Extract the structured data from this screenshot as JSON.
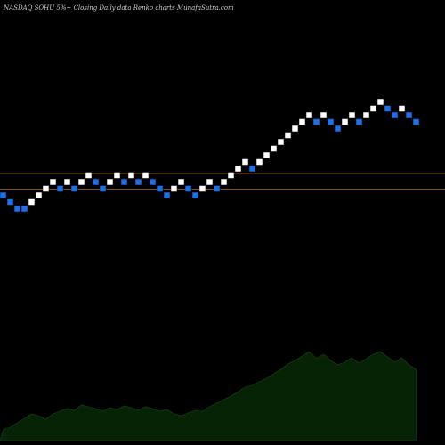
{
  "chart_data": {
    "type": "renko",
    "title": "NASDAQ SOHU 5%~  Closing Daily data  Renko  charts MunafaSutra.com",
    "colors": {
      "background": "#000000",
      "up_brick": "#ffffff",
      "down_brick": "#1e6fe8",
      "reference_line": "#b8691f",
      "volume_fill": "#062306",
      "volume_stroke": "#1a4a1a",
      "label": "#dddddd"
    },
    "reference_lines": [
      1,
      3
    ],
    "bricks": [
      {
        "level": 0,
        "dir": "down"
      },
      {
        "level": -1,
        "dir": "down"
      },
      {
        "level": -2,
        "dir": "down"
      },
      {
        "level": -2,
        "dir": "down"
      },
      {
        "level": -1,
        "dir": "up"
      },
      {
        "level": 0,
        "dir": "up"
      },
      {
        "level": 1,
        "dir": "up"
      },
      {
        "level": 2,
        "dir": "up"
      },
      {
        "level": 1,
        "dir": "down"
      },
      {
        "level": 2,
        "dir": "up"
      },
      {
        "level": 1,
        "dir": "down"
      },
      {
        "level": 2,
        "dir": "up"
      },
      {
        "level": 3,
        "dir": "up"
      },
      {
        "level": 2,
        "dir": "down"
      },
      {
        "level": 1,
        "dir": "down"
      },
      {
        "level": 2,
        "dir": "up"
      },
      {
        "level": 3,
        "dir": "up"
      },
      {
        "level": 2,
        "dir": "down"
      },
      {
        "level": 3,
        "dir": "up"
      },
      {
        "level": 2,
        "dir": "down"
      },
      {
        "level": 3,
        "dir": "up"
      },
      {
        "level": 2,
        "dir": "down"
      },
      {
        "level": 1,
        "dir": "down"
      },
      {
        "level": 0,
        "dir": "down"
      },
      {
        "level": 1,
        "dir": "up"
      },
      {
        "level": 2,
        "dir": "up"
      },
      {
        "level": 1,
        "dir": "down"
      },
      {
        "level": 0,
        "dir": "down"
      },
      {
        "level": 1,
        "dir": "up"
      },
      {
        "level": 2,
        "dir": "up"
      },
      {
        "level": 1,
        "dir": "down"
      },
      {
        "level": 2,
        "dir": "up"
      },
      {
        "level": 3,
        "dir": "up"
      },
      {
        "level": 4,
        "dir": "up"
      },
      {
        "level": 5,
        "dir": "up"
      },
      {
        "level": 4,
        "dir": "down"
      },
      {
        "level": 5,
        "dir": "up"
      },
      {
        "level": 6,
        "dir": "up"
      },
      {
        "level": 7,
        "dir": "up"
      },
      {
        "level": 8,
        "dir": "up"
      },
      {
        "level": 9,
        "dir": "up"
      },
      {
        "level": 10,
        "dir": "up"
      },
      {
        "level": 11,
        "dir": "up"
      },
      {
        "level": 12,
        "dir": "up"
      },
      {
        "level": 11,
        "dir": "down"
      },
      {
        "level": 12,
        "dir": "up"
      },
      {
        "level": 11,
        "dir": "down"
      },
      {
        "level": 10,
        "dir": "down"
      },
      {
        "level": 11,
        "dir": "up"
      },
      {
        "level": 12,
        "dir": "up"
      },
      {
        "level": 11,
        "dir": "down"
      },
      {
        "level": 12,
        "dir": "up"
      },
      {
        "level": 13,
        "dir": "up"
      },
      {
        "level": 14,
        "dir": "up"
      },
      {
        "level": 13,
        "dir": "down"
      },
      {
        "level": 12,
        "dir": "down"
      },
      {
        "level": 13,
        "dir": "up"
      },
      {
        "level": 12,
        "dir": "down"
      },
      {
        "level": 11,
        "dir": "down"
      }
    ],
    "volume_profile": [
      0.12,
      0.15,
      0.2,
      0.25,
      0.3,
      0.28,
      0.24,
      0.3,
      0.33,
      0.36,
      0.34,
      0.4,
      0.38,
      0.36,
      0.33,
      0.37,
      0.35,
      0.39,
      0.37,
      0.34,
      0.38,
      0.36,
      0.33,
      0.35,
      0.3,
      0.28,
      0.31,
      0.34,
      0.33,
      0.38,
      0.42,
      0.46,
      0.5,
      0.55,
      0.6,
      0.62,
      0.66,
      0.7,
      0.75,
      0.8,
      0.86,
      0.9,
      0.95,
      1.0,
      0.92,
      0.97,
      0.9,
      0.85,
      0.88,
      0.93,
      0.87,
      0.92,
      0.97,
      1.0,
      0.94,
      0.88,
      0.93,
      0.85,
      0.8
    ]
  }
}
